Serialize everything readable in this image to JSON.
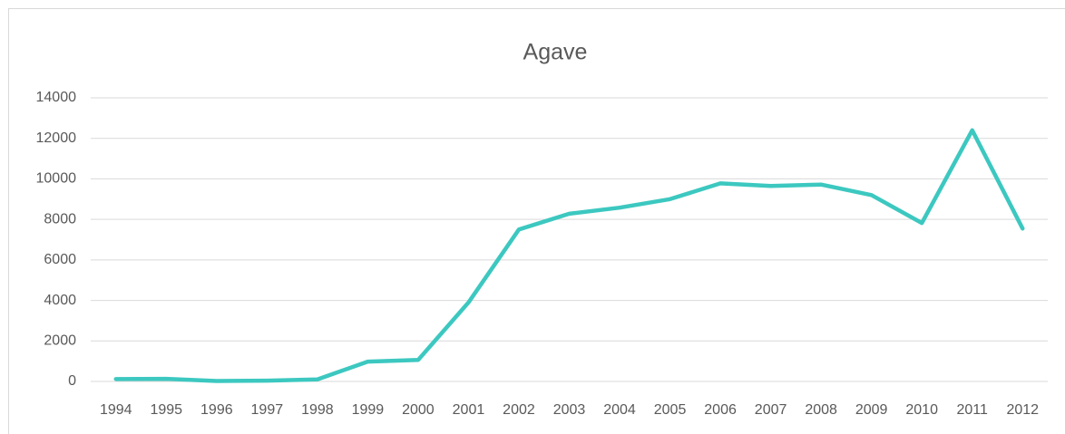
{
  "chart_data": {
    "type": "line",
    "title": "Agave",
    "categories": [
      "1994",
      "1995",
      "1996",
      "1997",
      "1998",
      "1999",
      "2000",
      "2001",
      "2002",
      "2003",
      "2004",
      "2005",
      "2006",
      "2007",
      "2008",
      "2009",
      "2010",
      "2011",
      "2012"
    ],
    "values": [
      120,
      130,
      20,
      40,
      100,
      980,
      1060,
      3900,
      7500,
      8280,
      8580,
      9000,
      9780,
      9650,
      9720,
      9200,
      7820,
      12400,
      7550
    ],
    "color": "#3cc8c0",
    "ylim": [
      0,
      14000
    ],
    "yticks": [
      0,
      2000,
      4000,
      6000,
      8000,
      10000,
      12000,
      14000
    ],
    "grid": true
  }
}
